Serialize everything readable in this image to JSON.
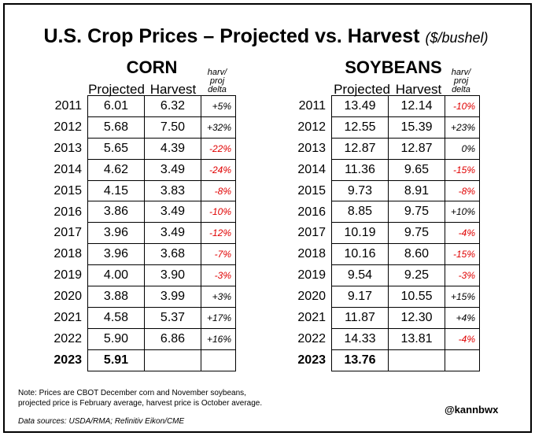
{
  "title": "U.S. Crop Prices – Projected vs. Harvest",
  "title_unit": "($/bushel)",
  "column_headers": {
    "projected": "Projected",
    "harvest": "Harvest",
    "delta_line1": "harv/",
    "delta_line2": "proj",
    "delta_line3": "delta"
  },
  "chart_data": [
    {
      "type": "table",
      "name": "CORN",
      "columns": [
        "Projected",
        "Harvest",
        "harv/proj delta"
      ],
      "rows": [
        {
          "year": "2011",
          "projected": "6.01",
          "harvest": "6.32",
          "delta": "+5%"
        },
        {
          "year": "2012",
          "projected": "5.68",
          "harvest": "7.50",
          "delta": "+32%"
        },
        {
          "year": "2013",
          "projected": "5.65",
          "harvest": "4.39",
          "delta": "-22%"
        },
        {
          "year": "2014",
          "projected": "4.62",
          "harvest": "3.49",
          "delta": "-24%"
        },
        {
          "year": "2015",
          "projected": "4.15",
          "harvest": "3.83",
          "delta": "-8%"
        },
        {
          "year": "2016",
          "projected": "3.86",
          "harvest": "3.49",
          "delta": "-10%"
        },
        {
          "year": "2017",
          "projected": "3.96",
          "harvest": "3.49",
          "delta": "-12%"
        },
        {
          "year": "2018",
          "projected": "3.96",
          "harvest": "3.68",
          "delta": "-7%"
        },
        {
          "year": "2019",
          "projected": "4.00",
          "harvest": "3.90",
          "delta": "-3%"
        },
        {
          "year": "2020",
          "projected": "3.88",
          "harvest": "3.99",
          "delta": "+3%"
        },
        {
          "year": "2021",
          "projected": "4.58",
          "harvest": "5.37",
          "delta": "+17%"
        },
        {
          "year": "2022",
          "projected": "5.90",
          "harvest": "6.86",
          "delta": "+16%"
        },
        {
          "year": "2023",
          "projected": "5.91",
          "harvest": "",
          "delta": ""
        }
      ]
    },
    {
      "type": "table",
      "name": "SOYBEANS",
      "columns": [
        "Projected",
        "Harvest",
        "harv/proj delta"
      ],
      "rows": [
        {
          "year": "2011",
          "projected": "13.49",
          "harvest": "12.14",
          "delta": "-10%"
        },
        {
          "year": "2012",
          "projected": "12.55",
          "harvest": "15.39",
          "delta": "+23%"
        },
        {
          "year": "2013",
          "projected": "12.87",
          "harvest": "12.87",
          "delta": "0%"
        },
        {
          "year": "2014",
          "projected": "11.36",
          "harvest": "9.65",
          "delta": "-15%"
        },
        {
          "year": "2015",
          "projected": "9.73",
          "harvest": "8.91",
          "delta": "-8%"
        },
        {
          "year": "2016",
          "projected": "8.85",
          "harvest": "9.75",
          "delta": "+10%"
        },
        {
          "year": "2017",
          "projected": "10.19",
          "harvest": "9.75",
          "delta": "-4%"
        },
        {
          "year": "2018",
          "projected": "10.16",
          "harvest": "8.60",
          "delta": "-15%"
        },
        {
          "year": "2019",
          "projected": "9.54",
          "harvest": "9.25",
          "delta": "-3%"
        },
        {
          "year": "2020",
          "projected": "9.17",
          "harvest": "10.55",
          "delta": "+15%"
        },
        {
          "year": "2021",
          "projected": "11.87",
          "harvest": "12.30",
          "delta": "+4%"
        },
        {
          "year": "2022",
          "projected": "14.33",
          "harvest": "13.81",
          "delta": "-4%"
        },
        {
          "year": "2023",
          "projected": "13.76",
          "harvest": "",
          "delta": ""
        }
      ]
    }
  ],
  "footer": {
    "note_line1": "Note: Prices are CBOT December corn and November soybeans,",
    "note_line2": "projected price is February average, harvest price is October average.",
    "sources": "Data sources: USDA/RMA; Refinitiv Eikon/CME",
    "handle": "@kannbwx"
  },
  "colors": {
    "negative": "#e00000",
    "text": "#000000",
    "background": "#ffffff"
  }
}
